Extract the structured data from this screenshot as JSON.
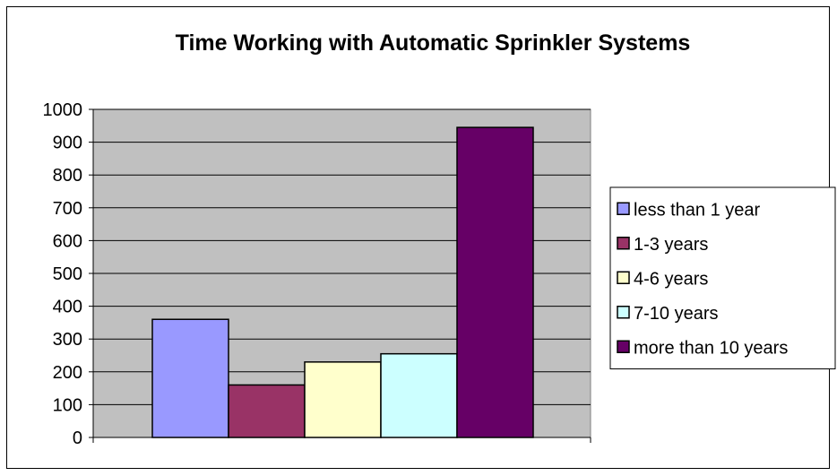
{
  "chart_data": {
    "type": "bar",
    "title": "Time Working with Automatic Sprinkler Systems",
    "xlabel": "",
    "ylabel": "",
    "ylim": [
      0,
      1000
    ],
    "yticks": [
      0,
      100,
      200,
      300,
      400,
      500,
      600,
      700,
      800,
      900,
      1000
    ],
    "grid": true,
    "legend_position": "right",
    "plot_background": "#c0c0c0",
    "series": [
      {
        "name": "less than 1 year",
        "value": 360,
        "color": "#9999ff"
      },
      {
        "name": "1-3 years",
        "value": 160,
        "color": "#993366"
      },
      {
        "name": "4-6 years",
        "value": 230,
        "color": "#ffffcc"
      },
      {
        "name": "7-10 years",
        "value": 255,
        "color": "#ccffff"
      },
      {
        "name": "more than 10 years",
        "value": 945,
        "color": "#660066"
      }
    ]
  }
}
